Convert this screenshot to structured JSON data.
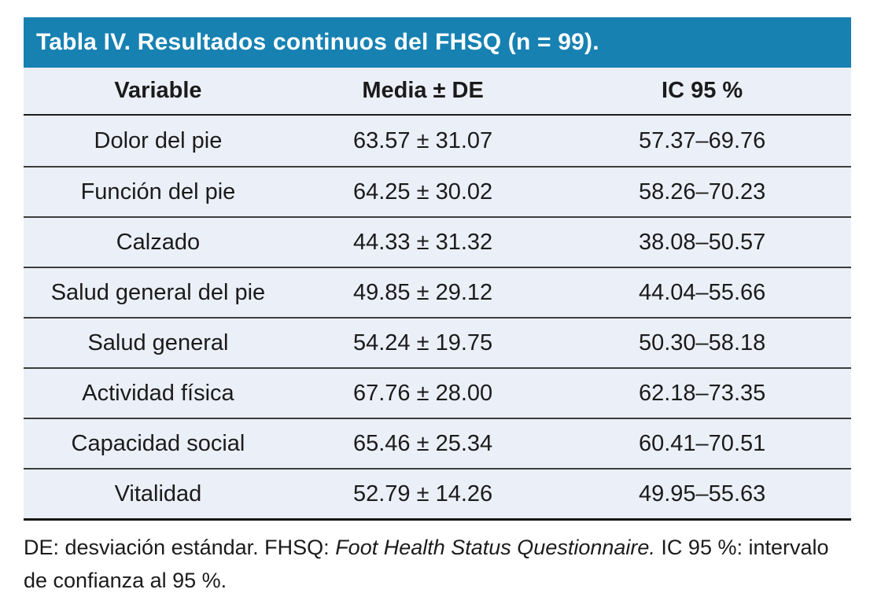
{
  "table": {
    "title": "Tabla IV. Resultados continuos del FHSQ (n = 99).",
    "columns": [
      "Variable",
      "Media ± DE",
      "IC 95 %"
    ],
    "rows": [
      {
        "variable": "Dolor del pie",
        "media_de": "63.57 ± 31.07",
        "ic95": "57.37–69.76"
      },
      {
        "variable": "Función del pie",
        "media_de": "64.25 ± 30.02",
        "ic95": "58.26–70.23"
      },
      {
        "variable": "Calzado",
        "media_de": "44.33 ± 31.32",
        "ic95": "38.08–50.57"
      },
      {
        "variable": "Salud general del pie",
        "media_de": "49.85 ± 29.12",
        "ic95": "44.04–55.66"
      },
      {
        "variable": "Salud general",
        "media_de": "54.24 ± 19.75",
        "ic95": "50.30–58.18"
      },
      {
        "variable": "Actividad física",
        "media_de": "67.76 ± 28.00",
        "ic95": "62.18–73.35"
      },
      {
        "variable": "Capacidad social",
        "media_de": "65.46 ± 25.34",
        "ic95": "60.41–70.51"
      },
      {
        "variable": "Vitalidad",
        "media_de": "52.79 ± 14.26",
        "ic95": "49.95–55.63"
      }
    ],
    "footnote": {
      "part1": "DE: desviación estándar. FHSQ: ",
      "italic": "Foot Health Status Questionnaire.",
      "part2": " IC 95 %: intervalo de confianza al 95 %."
    },
    "colors": {
      "title_bg": "#1781B2",
      "row_bg": "#EBEFF7",
      "text": "#1B1B1B",
      "separator": "#3D3D3D"
    }
  }
}
